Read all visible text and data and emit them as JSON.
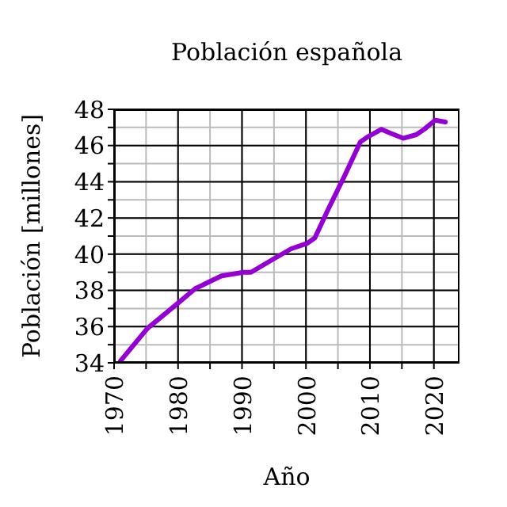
{
  "chart_data": {
    "type": "line",
    "title": "Población española",
    "xlabel": "Año",
    "ylabel": "Población [millones]",
    "x": [
      1971,
      1975.2,
      1980,
      1982.7,
      1986.8,
      1990.2,
      1991.4,
      1994.75,
      1997.7,
      2000.2,
      2001.4,
      2003.5,
      2006,
      2008.5,
      2009.75,
      2011.8,
      2013.1,
      2015.2,
      2017.25,
      2018.5,
      2020.2,
      2021.8
    ],
    "series": [
      {
        "color": "#9400d3",
        "values": [
          34.1,
          35.9,
          37.3,
          38.1,
          38.8,
          39.0,
          39.0,
          39.7,
          40.3,
          40.6,
          40.9,
          42.5,
          44.3,
          46.2,
          46.5,
          46.9,
          46.7,
          46.4,
          46.6,
          46.9,
          47.4,
          47.3
        ]
      }
    ],
    "xlim": [
      1970,
      2024
    ],
    "xticks": [
      1970,
      {
        "value": 1975,
        "label": null
      },
      1980,
      {
        "value": 1985,
        "label": null
      },
      1990,
      {
        "value": 1995,
        "label": null
      },
      2000,
      {
        "value": 2005,
        "label": null
      },
      2010,
      {
        "value": 2015,
        "label": null
      },
      2020
    ],
    "ylim": [
      34,
      48
    ],
    "yticks": [
      34,
      {
        "value": 35,
        "label": null
      },
      36,
      {
        "value": 37,
        "label": null
      },
      38,
      {
        "value": 39,
        "label": null
      },
      40,
      {
        "value": 41,
        "label": null
      },
      42,
      {
        "value": 43,
        "label": null
      },
      44,
      {
        "value": 45,
        "label": null
      },
      46,
      {
        "value": 47,
        "label": null
      },
      48
    ],
    "grid": true,
    "marker": "none",
    "line_style": "solid"
  }
}
